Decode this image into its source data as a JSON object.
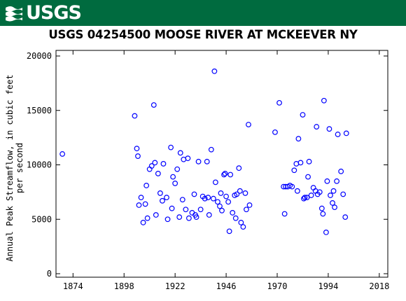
{
  "header": {
    "logo_text": "USGS",
    "brand_color": "#006b3f",
    "logo_icon": "usgs-wave-icon"
  },
  "chart_data": {
    "type": "scatter",
    "title": "USGS 04254500 MOOSE RIVER AT MCKEEVER NY",
    "xlabel": "",
    "ylabel": "Annual Peak Streamflow, in cubic feet per second",
    "ylabel_lines": [
      "Annual Peak Streamflow, in cubic feet",
      "per second"
    ],
    "xlim": [
      1866,
      2022
    ],
    "ylim": [
      0,
      20000
    ],
    "x_ticks": [
      1874,
      1898,
      1922,
      1946,
      1970,
      1994,
      2018
    ],
    "y_ticks": [
      0,
      5000,
      10000,
      15000,
      20000
    ],
    "grid": false,
    "marker": "open-circle",
    "marker_color": "#0000ff",
    "series": [
      {
        "points": [
          [
            1869,
            11000
          ],
          [
            1903,
            14500
          ],
          [
            1904,
            11500
          ],
          [
            1904.5,
            10800
          ],
          [
            1905,
            6300
          ],
          [
            1906,
            7000
          ],
          [
            1907,
            4700
          ],
          [
            1908,
            6400
          ],
          [
            1908.5,
            8100
          ],
          [
            1909,
            5100
          ],
          [
            1910,
            9600
          ],
          [
            1911,
            9900
          ],
          [
            1912,
            15500
          ],
          [
            1912.5,
            10200
          ],
          [
            1913,
            5400
          ],
          [
            1914,
            9200
          ],
          [
            1915,
            7400
          ],
          [
            1916,
            6700
          ],
          [
            1916.5,
            10100
          ],
          [
            1918,
            7000
          ],
          [
            1918.5,
            5000
          ],
          [
            1920,
            11600
          ],
          [
            1920.5,
            6000
          ],
          [
            1921,
            8900
          ],
          [
            1922,
            8300
          ],
          [
            1923,
            9600
          ],
          [
            1924,
            5200
          ],
          [
            1924.5,
            11100
          ],
          [
            1925.5,
            6800
          ],
          [
            1926,
            10500
          ],
          [
            1927,
            5900
          ],
          [
            1928,
            10600
          ],
          [
            1928.5,
            5100
          ],
          [
            1930,
            5600
          ],
          [
            1931,
            7300
          ],
          [
            1931.5,
            5400
          ],
          [
            1932,
            5200
          ],
          [
            1933,
            10300
          ],
          [
            1934,
            5900
          ],
          [
            1935,
            7100
          ],
          [
            1936,
            6900
          ],
          [
            1937,
            10300
          ],
          [
            1937.5,
            7000
          ],
          [
            1938,
            5400
          ],
          [
            1939,
            11400
          ],
          [
            1940,
            6900
          ],
          [
            1940.5,
            18600
          ],
          [
            1941,
            8400
          ],
          [
            1942,
            6600
          ],
          [
            1943,
            6200
          ],
          [
            1943.5,
            7400
          ],
          [
            1944,
            5800
          ],
          [
            1945,
            9100
          ],
          [
            1945.5,
            9200
          ],
          [
            1946,
            7100
          ],
          [
            1947,
            6600
          ],
          [
            1947.5,
            3900
          ],
          [
            1948,
            9100
          ],
          [
            1949,
            5600
          ],
          [
            1950,
            7200
          ],
          [
            1950.5,
            5100
          ],
          [
            1951,
            7300
          ],
          [
            1952,
            9700
          ],
          [
            1952.5,
            7600
          ],
          [
            1953,
            4700
          ],
          [
            1954,
            4300
          ],
          [
            1955,
            7400
          ],
          [
            1955.5,
            5900
          ],
          [
            1956.5,
            13700
          ],
          [
            1957,
            6300
          ],
          [
            1969,
            13000
          ],
          [
            1971,
            15700
          ],
          [
            1973,
            8000
          ],
          [
            1973.5,
            5500
          ],
          [
            1974,
            8000
          ],
          [
            1975,
            8000
          ],
          [
            1976,
            8100
          ],
          [
            1977,
            8000
          ],
          [
            1978,
            9500
          ],
          [
            1979,
            10100
          ],
          [
            1979.5,
            7600
          ],
          [
            1980,
            12400
          ],
          [
            1981,
            10200
          ],
          [
            1982,
            14600
          ],
          [
            1982.5,
            6900
          ],
          [
            1983,
            7000
          ],
          [
            1984,
            7000
          ],
          [
            1984.5,
            8900
          ],
          [
            1985,
            10300
          ],
          [
            1986,
            7200
          ],
          [
            1987,
            7900
          ],
          [
            1988,
            7600
          ],
          [
            1988.5,
            13500
          ],
          [
            1989,
            7300
          ],
          [
            1990,
            7500
          ],
          [
            1991,
            6000
          ],
          [
            1991.5,
            5500
          ],
          [
            1992,
            15900
          ],
          [
            1993,
            3800
          ],
          [
            1993.5,
            8500
          ],
          [
            1994.5,
            13300
          ],
          [
            1995,
            7200
          ],
          [
            1996,
            6500
          ],
          [
            1996.5,
            7600
          ],
          [
            1997,
            6100
          ],
          [
            1998,
            8500
          ],
          [
            1998.5,
            12800
          ],
          [
            2000,
            9400
          ],
          [
            2001,
            7300
          ],
          [
            2002,
            5200
          ],
          [
            2002.5,
            12900
          ]
        ]
      }
    ]
  }
}
